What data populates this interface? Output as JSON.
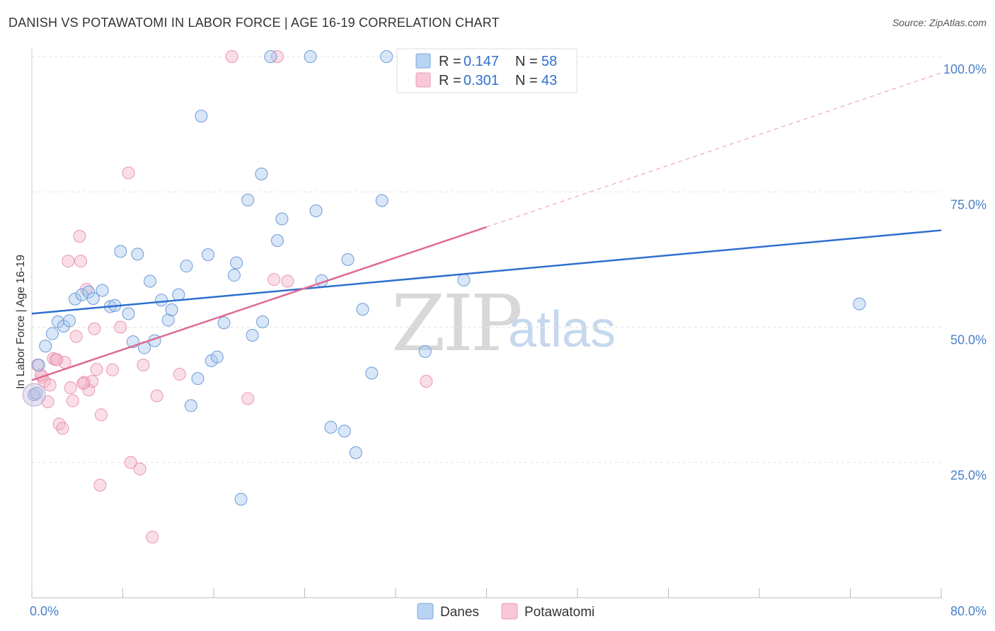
{
  "title": "DANISH VS POTAWATOMI IN LABOR FORCE | AGE 16-19 CORRELATION CHART",
  "source": "Source: ZipAtlas.com",
  "watermark": {
    "zip": "ZIP",
    "atlas": "atlas"
  },
  "colors": {
    "danes": "#a9c8ee",
    "danes_line": "#2f6fce",
    "potawatomi": "#f4b6c8",
    "potawatomi_line": "#e06a93",
    "tick": "#4a7fc8"
  },
  "stats_box": [
    {
      "r_label": "R =",
      "r_value": "0.147",
      "n_label": "N =",
      "n_value": "58"
    },
    {
      "r_label": "R =",
      "r_value": "0.301",
      "n_label": "N =",
      "n_value": "43"
    }
  ],
  "legend": [
    "Danes",
    "Potawatomi"
  ],
  "chart_data": {
    "type": "scatter",
    "title": "DANISH VS POTAWATOMI IN LABOR FORCE | AGE 16-19 CORRELATION CHART",
    "xlabel": "",
    "ylabel": "In Labor Force | Age 16-19",
    "xlim": [
      0,
      80
    ],
    "ylim": [
      0,
      100
    ],
    "x_tick_labels": [
      "0.0%",
      "80.0%"
    ],
    "y_ticks": [
      25,
      50,
      75,
      100
    ],
    "y_tick_labels": [
      "25.0%",
      "50.0%",
      "75.0%",
      "100.0%"
    ],
    "grid": true,
    "legend_position": "bottom-center",
    "series": [
      {
        "name": "Danes",
        "r": 0.147,
        "n": 58,
        "trend": {
          "x": [
            0,
            80
          ],
          "y": [
            52.5,
            67.9
          ]
        },
        "points": [
          [
            0.2,
            37.5
          ],
          [
            0.6,
            43.0
          ],
          [
            1.2,
            46.5
          ],
          [
            1.8,
            48.8
          ],
          [
            2.3,
            51.0
          ],
          [
            2.8,
            50.2
          ],
          [
            3.3,
            51.2
          ],
          [
            3.8,
            55.2
          ],
          [
            4.4,
            56.0
          ],
          [
            5.0,
            56.5
          ],
          [
            5.4,
            55.3
          ],
          [
            6.2,
            56.8
          ],
          [
            6.9,
            53.8
          ],
          [
            7.3,
            54.0
          ],
          [
            7.8,
            64.0
          ],
          [
            8.5,
            52.5
          ],
          [
            8.9,
            47.3
          ],
          [
            9.3,
            63.5
          ],
          [
            9.9,
            46.2
          ],
          [
            10.4,
            58.5
          ],
          [
            10.8,
            47.5
          ],
          [
            11.4,
            55.0
          ],
          [
            12.0,
            51.3
          ],
          [
            12.3,
            53.2
          ],
          [
            12.9,
            56.0
          ],
          [
            13.6,
            61.3
          ],
          [
            14.0,
            35.5
          ],
          [
            14.6,
            40.5
          ],
          [
            14.9,
            89.0
          ],
          [
            15.5,
            63.4
          ],
          [
            15.8,
            43.8
          ],
          [
            16.3,
            44.5
          ],
          [
            16.9,
            50.8
          ],
          [
            17.8,
            59.6
          ],
          [
            18.0,
            61.9
          ],
          [
            18.4,
            18.2
          ],
          [
            19.0,
            73.5
          ],
          [
            19.4,
            48.5
          ],
          [
            20.2,
            78.3
          ],
          [
            20.3,
            51.0
          ],
          [
            21.0,
            100.0
          ],
          [
            21.6,
            66.0
          ],
          [
            22.0,
            70.0
          ],
          [
            24.5,
            100.0
          ],
          [
            25.0,
            71.5
          ],
          [
            25.5,
            58.6
          ],
          [
            26.3,
            31.5
          ],
          [
            27.5,
            30.8
          ],
          [
            27.8,
            62.5
          ],
          [
            28.5,
            26.8
          ],
          [
            29.1,
            53.3
          ],
          [
            29.9,
            41.5
          ],
          [
            30.8,
            73.4
          ],
          [
            31.2,
            100.0
          ],
          [
            34.6,
            45.5
          ],
          [
            38.0,
            58.7
          ],
          [
            72.8,
            54.3
          ],
          [
            0.4,
            37.8
          ]
        ]
      },
      {
        "name": "Potawatomi",
        "r": 0.301,
        "n": 43,
        "trend": {
          "x": [
            0,
            40
          ],
          "y": [
            40.2,
            68.5
          ]
        },
        "trend_dashed": {
          "x": [
            40,
            80
          ],
          "y": [
            68.5,
            97.0
          ]
        },
        "points": [
          [
            0.2,
            37.5
          ],
          [
            0.5,
            43.0
          ],
          [
            0.9,
            40.8
          ],
          [
            1.1,
            40.0
          ],
          [
            1.4,
            36.2
          ],
          [
            1.6,
            39.3
          ],
          [
            1.9,
            44.2
          ],
          [
            2.1,
            44.0
          ],
          [
            2.4,
            32.1
          ],
          [
            2.7,
            31.3
          ],
          [
            2.9,
            43.5
          ],
          [
            3.2,
            62.2
          ],
          [
            3.4,
            38.8
          ],
          [
            3.6,
            36.4
          ],
          [
            3.9,
            48.3
          ],
          [
            4.2,
            66.8
          ],
          [
            4.3,
            62.2
          ],
          [
            4.6,
            39.8
          ],
          [
            4.8,
            57.0
          ],
          [
            5.0,
            38.4
          ],
          [
            5.3,
            40.0
          ],
          [
            5.5,
            49.7
          ],
          [
            5.7,
            42.2
          ],
          [
            6.0,
            20.8
          ],
          [
            6.1,
            33.8
          ],
          [
            7.1,
            42.1
          ],
          [
            7.8,
            50.0
          ],
          [
            8.5,
            78.5
          ],
          [
            8.7,
            25.0
          ],
          [
            9.5,
            23.8
          ],
          [
            9.8,
            43.0
          ],
          [
            10.6,
            11.2
          ],
          [
            11.0,
            37.3
          ],
          [
            13.0,
            41.3
          ],
          [
            17.6,
            100.0
          ],
          [
            19.0,
            36.8
          ],
          [
            21.3,
            58.8
          ],
          [
            21.6,
            100.0
          ],
          [
            22.5,
            58.5
          ],
          [
            34.7,
            40.0
          ],
          [
            2.2,
            44.0
          ],
          [
            0.8,
            41.2
          ],
          [
            4.5,
            39.6
          ]
        ]
      }
    ]
  }
}
